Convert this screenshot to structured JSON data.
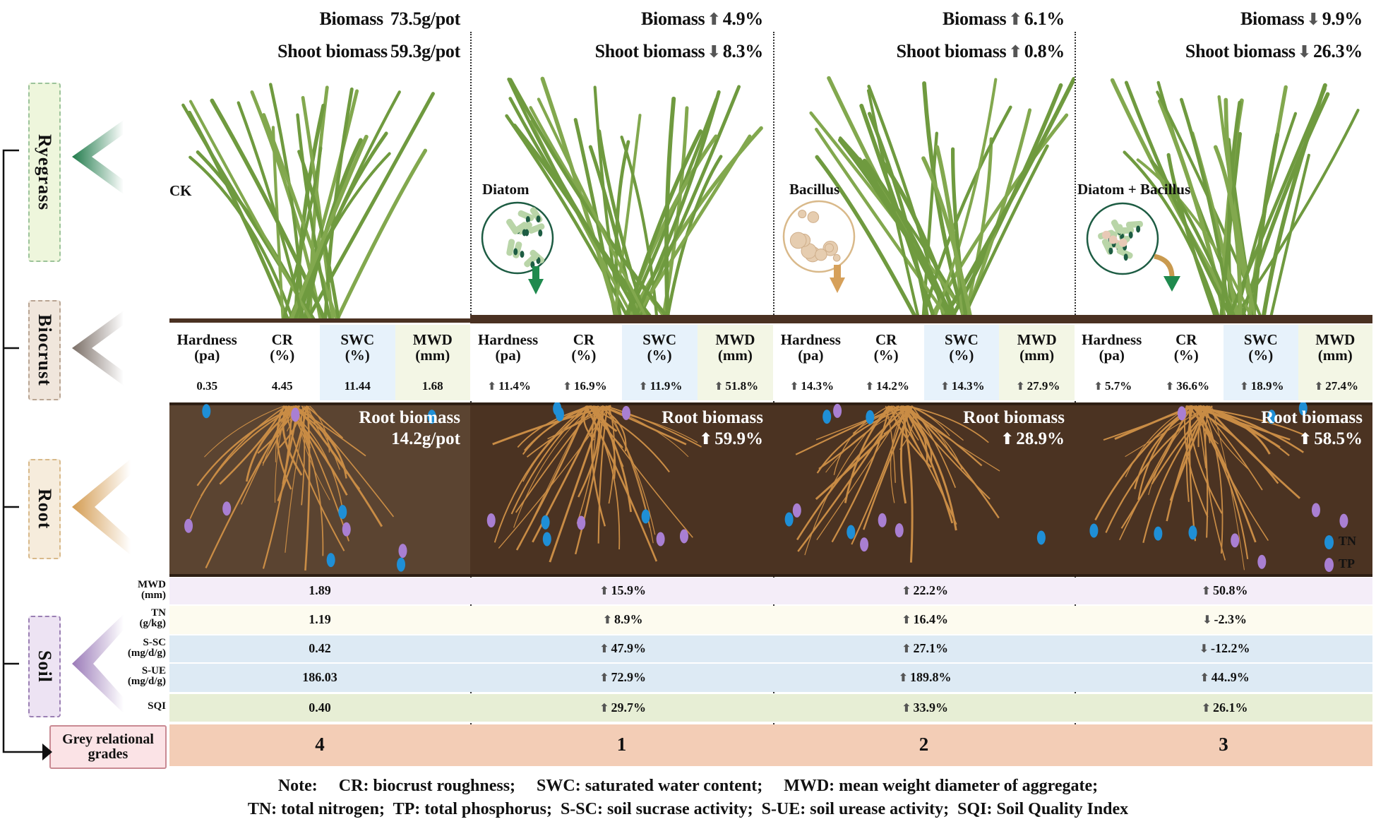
{
  "sections": {
    "ryegrass": "Ryegrass",
    "biocrust": "Biocrust",
    "root": "Root",
    "soil": "Soil",
    "grey": "Grey relational grades"
  },
  "biocrust_headers": [
    {
      "name": "Hardness",
      "unit": "(pa)"
    },
    {
      "name": "CR",
      "unit": "(%)"
    },
    {
      "name": "SWC",
      "unit": "(%)"
    },
    {
      "name": "MWD",
      "unit": "(mm)"
    }
  ],
  "soil_rows": [
    {
      "name": "MWD",
      "unit": "(mm)"
    },
    {
      "name": "TN",
      "unit": "(g/kg)"
    },
    {
      "name": "S-SC",
      "unit": "(mg/d/g)"
    },
    {
      "name": "S-UE",
      "unit": "(mg/d/g)"
    },
    {
      "name": "SQI",
      "unit": ""
    }
  ],
  "treatments": [
    {
      "label": "CK",
      "biomass": {
        "label": "Biomass",
        "dir": "",
        "value": "73.5g/pot"
      },
      "shoot": {
        "label": "Shoot biomass",
        "dir": "",
        "value": "59.3g/pot"
      },
      "biocrust": [
        {
          "dir": "",
          "value": "0.35"
        },
        {
          "dir": "",
          "value": "4.45"
        },
        {
          "dir": "",
          "value": "11.44"
        },
        {
          "dir": "",
          "value": "1.68"
        }
      ],
      "root": {
        "label": "Root biomass",
        "dir": "",
        "value": "14.2g/pot"
      },
      "soil": [
        {
          "dir": "",
          "value": "1.89"
        },
        {
          "dir": "",
          "value": "1.19"
        },
        {
          "dir": "",
          "value": "0.42"
        },
        {
          "dir": "",
          "value": "186.03"
        },
        {
          "dir": "",
          "value": "0.40"
        }
      ],
      "grade": "4",
      "inoculant": ""
    },
    {
      "label": "Diatom",
      "biomass": {
        "label": "Biomass",
        "dir": "up",
        "value": "4.9%"
      },
      "shoot": {
        "label": "Shoot biomass",
        "dir": "down",
        "value": "8.3%"
      },
      "biocrust": [
        {
          "dir": "up",
          "value": "11.4%"
        },
        {
          "dir": "up",
          "value": "16.9%"
        },
        {
          "dir": "up",
          "value": "11.9%"
        },
        {
          "dir": "up",
          "value": "51.8%"
        }
      ],
      "root": {
        "label": "Root biomass",
        "dir": "up",
        "value": "59.9%"
      },
      "soil": [
        {
          "dir": "up",
          "value": "15.9%"
        },
        {
          "dir": "up",
          "value": "8.9%"
        },
        {
          "dir": "up",
          "value": "47.9%"
        },
        {
          "dir": "up",
          "value": "72.9%"
        },
        {
          "dir": "up",
          "value": "29.7%"
        }
      ],
      "grade": "1",
      "inoculant": "diatom"
    },
    {
      "label": "Bacillus",
      "biomass": {
        "label": "Biomass",
        "dir": "up",
        "value": "6.1%"
      },
      "shoot": {
        "label": "Shoot biomass",
        "dir": "up",
        "value": "0.8%"
      },
      "biocrust": [
        {
          "dir": "up",
          "value": "14.3%"
        },
        {
          "dir": "up",
          "value": "14.2%"
        },
        {
          "dir": "up",
          "value": "14.3%"
        },
        {
          "dir": "up",
          "value": "27.9%"
        }
      ],
      "root": {
        "label": "Root biomass",
        "dir": "up",
        "value": "28.9%"
      },
      "soil": [
        {
          "dir": "up",
          "value": "22.2%"
        },
        {
          "dir": "up",
          "value": "16.4%"
        },
        {
          "dir": "up",
          "value": "27.1%"
        },
        {
          "dir": "up",
          "value": "189.8%"
        },
        {
          "dir": "up",
          "value": "33.9%"
        }
      ],
      "grade": "2",
      "inoculant": "bacillus"
    },
    {
      "label": "Diatom + Bacillus",
      "biomass": {
        "label": "Biomass",
        "dir": "down",
        "value": "9.9%"
      },
      "shoot": {
        "label": "Shoot biomass",
        "dir": "down",
        "value": "26.3%"
      },
      "biocrust": [
        {
          "dir": "up",
          "value": "5.7%"
        },
        {
          "dir": "up",
          "value": "36.6%"
        },
        {
          "dir": "up",
          "value": "18.9%"
        },
        {
          "dir": "up",
          "value": "27.4%"
        }
      ],
      "root": {
        "label": "Root biomass",
        "dir": "up",
        "value": "58.5%"
      },
      "soil": [
        {
          "dir": "up",
          "value": "50.8%"
        },
        {
          "dir": "down",
          "value": "-2.3%"
        },
        {
          "dir": "down",
          "value": "-12.2%"
        },
        {
          "dir": "up",
          "value": "44..9%"
        },
        {
          "dir": "up",
          "value": "26.1%"
        }
      ],
      "grade": "3",
      "inoculant": "mixed"
    }
  ],
  "legend": {
    "tn": "TN",
    "tp": "TP"
  },
  "note": {
    "line1": "Note:     CR: biocrust roughness;     SWC: saturated water content;     MWD: mean weight diameter of aggregate;",
    "line2": "TN: total nitrogen;  TP: total phosphorus;  S-SC: soil sucrase activity;  S-UE: soil urease activity;  SQI: Soil Quality Index"
  },
  "icons": {
    "up": "arrow-up-icon",
    "down": "arrow-down-icon"
  },
  "colors": {
    "grass": "#6f9a3f",
    "soil_surface": "#4a3122",
    "root_bg_ck": "#5b4431",
    "root_bg": "#4b3322",
    "root": "#c98c45",
    "tn_dot": "#1f8fd6",
    "tp_dot": "#a97fd2",
    "row_mwd": "#f4edf8",
    "row_tn": "#fdfbef",
    "row_ssc": "#ddeaf4",
    "row_sue": "#ddeaf4",
    "row_sqi": "#e7eed5",
    "row_grade": "#f3cdb6",
    "swc_bg": "#e7f2fb",
    "mwd_bg": "#f3f6e5",
    "ryegrass": "#2e8b57",
    "biocrust": "#8a7f78",
    "rootsec": "#d6a965",
    "soilsec": "#a98cc0"
  }
}
